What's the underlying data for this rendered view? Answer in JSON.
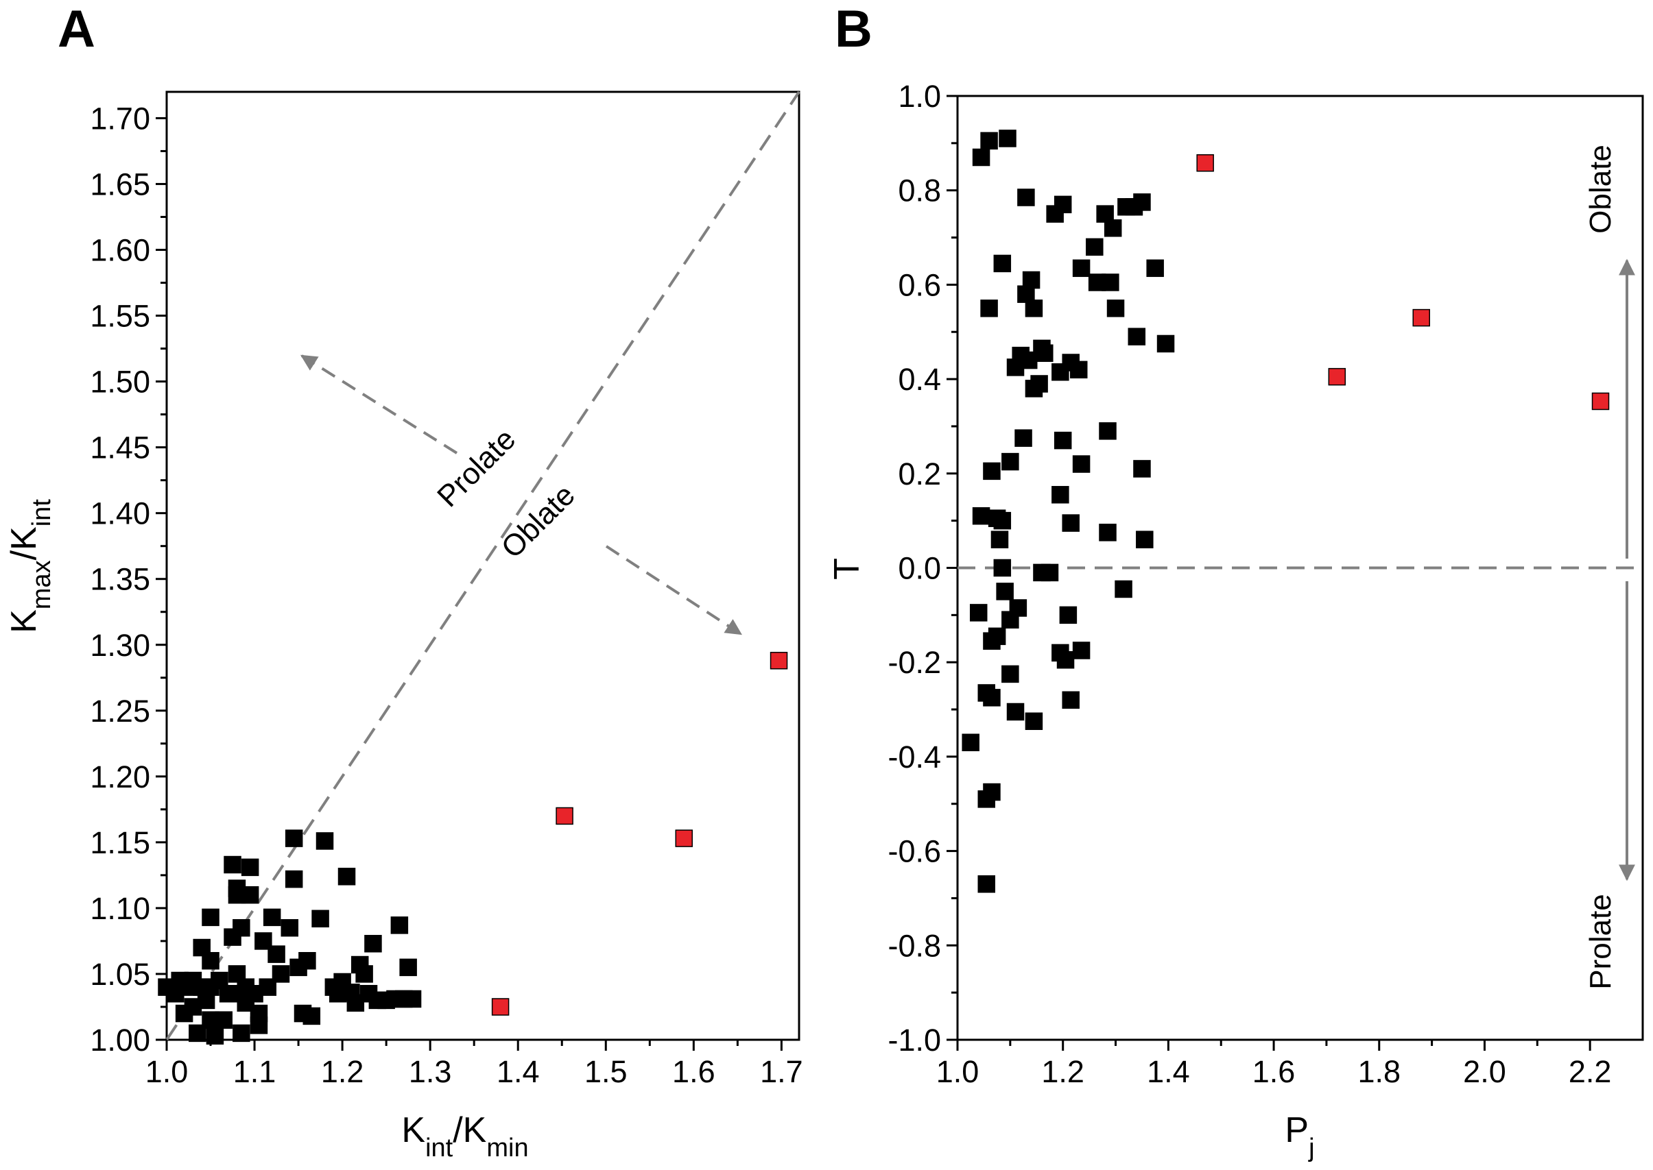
{
  "figure": {
    "panels": [
      {
        "letter": "A"
      },
      {
        "letter": "B"
      }
    ]
  },
  "chart_data": [
    {
      "type": "scatter",
      "panel": "A",
      "xlabel": {
        "base": "K",
        "sub": "int",
        "mid": "/K",
        "sub2": "min"
      },
      "ylabel": {
        "base": "K",
        "sub": "max",
        "mid": "/K",
        "sub2": "int"
      },
      "xlim": [
        1.0,
        1.72
      ],
      "ylim": [
        1.0,
        1.72
      ],
      "xticks": [
        "1.0",
        "1.1",
        "1.2",
        "1.3",
        "1.4",
        "1.5",
        "1.6",
        "1.7"
      ],
      "yticks": [
        "1.00",
        "1.05",
        "1.10",
        "1.15",
        "1.20",
        "1.25",
        "1.30",
        "1.35",
        "1.40",
        "1.45",
        "1.50",
        "1.55",
        "1.60",
        "1.65",
        "1.70"
      ],
      "reference_line": {
        "from": [
          1.0,
          1.0
        ],
        "to": [
          1.72,
          1.72
        ],
        "style": "dashed",
        "color": "#808080"
      },
      "annotations": {
        "upper": "Prolate",
        "lower": "Oblate"
      },
      "marker_colors": {
        "black": "#000000",
        "red": "#e8242a"
      },
      "series": [
        {
          "color": "black",
          "points": [
            [
              1.0,
              1.04
            ],
            [
              1.01,
              1.035
            ],
            [
              1.015,
              1.045
            ],
            [
              1.02,
              1.02
            ],
            [
              1.025,
              1.04
            ],
            [
              1.03,
              1.045
            ],
            [
              1.03,
              1.025
            ],
            [
              1.035,
              1.005
            ],
            [
              1.04,
              1.07
            ],
            [
              1.04,
              1.04
            ],
            [
              1.045,
              1.03
            ],
            [
              1.05,
              1.06
            ],
            [
              1.05,
              1.04
            ],
            [
              1.05,
              1.015
            ],
            [
              1.055,
              1.003
            ],
            [
              1.05,
              1.093
            ],
            [
              1.06,
              1.045
            ],
            [
              1.065,
              1.015
            ],
            [
              1.07,
              1.035
            ],
            [
              1.075,
              1.133
            ],
            [
              1.075,
              1.078
            ],
            [
              1.08,
              1.115
            ],
            [
              1.08,
              1.11
            ],
            [
              1.08,
              1.05
            ],
            [
              1.08,
              1.035
            ],
            [
              1.085,
              1.005
            ],
            [
              1.085,
              1.085
            ],
            [
              1.09,
              1.04
            ],
            [
              1.09,
              1.028
            ],
            [
              1.095,
              1.131
            ],
            [
              1.095,
              1.11
            ],
            [
              1.1,
              1.035
            ],
            [
              1.105,
              1.02
            ],
            [
              1.105,
              1.011
            ],
            [
              1.11,
              1.075
            ],
            [
              1.115,
              1.04
            ],
            [
              1.12,
              1.093
            ],
            [
              1.125,
              1.065
            ],
            [
              1.13,
              1.05
            ],
            [
              1.14,
              1.085
            ],
            [
              1.145,
              1.153
            ],
            [
              1.145,
              1.122
            ],
            [
              1.15,
              1.055
            ],
            [
              1.155,
              1.02
            ],
            [
              1.16,
              1.06
            ],
            [
              1.165,
              1.018
            ],
            [
              1.175,
              1.092
            ],
            [
              1.18,
              1.151
            ],
            [
              1.19,
              1.04
            ],
            [
              1.195,
              1.035
            ],
            [
              1.2,
              1.044
            ],
            [
              1.205,
              1.124
            ],
            [
              1.21,
              1.036
            ],
            [
              1.215,
              1.028
            ],
            [
              1.22,
              1.057
            ],
            [
              1.225,
              1.05
            ],
            [
              1.23,
              1.035
            ],
            [
              1.235,
              1.073
            ],
            [
              1.24,
              1.03
            ],
            [
              1.25,
              1.03
            ],
            [
              1.26,
              1.031
            ],
            [
              1.265,
              1.087
            ],
            [
              1.27,
              1.031
            ],
            [
              1.275,
              1.055
            ],
            [
              1.28,
              1.031
            ]
          ]
        },
        {
          "color": "red",
          "points": [
            [
              1.38,
              1.025
            ],
            [
              1.453,
              1.17
            ],
            [
              1.589,
              1.153
            ],
            [
              1.697,
              1.288
            ]
          ]
        }
      ]
    },
    {
      "type": "scatter",
      "panel": "B",
      "xlabel": {
        "base": "P",
        "sub": "j"
      },
      "ylabel": {
        "base": "T"
      },
      "xlim": [
        1.0,
        2.3
      ],
      "ylim": [
        -1.0,
        1.0
      ],
      "xticks": [
        "1.0",
        "1.2",
        "1.4",
        "1.6",
        "1.8",
        "2.0",
        "2.2"
      ],
      "yticks": [
        "-1.0",
        "-0.8",
        "-0.6",
        "-0.4",
        "-0.2",
        "0.0",
        "0.2",
        "0.4",
        "0.6",
        "0.8",
        "1.0"
      ],
      "reference_line": {
        "y": 0.0,
        "style": "dashed",
        "color": "#808080"
      },
      "annotations": {
        "upper": "Oblate",
        "lower": "Prolate"
      },
      "marker_colors": {
        "black": "#000000",
        "red": "#e8242a"
      },
      "series": [
        {
          "color": "black",
          "points": [
            [
              1.045,
              0.87
            ],
            [
              1.06,
              0.905
            ],
            [
              1.095,
              0.91
            ],
            [
              1.13,
              0.785
            ],
            [
              1.185,
              0.75
            ],
            [
              1.2,
              0.77
            ],
            [
              1.28,
              0.75
            ],
            [
              1.32,
              0.765
            ],
            [
              1.335,
              0.765
            ],
            [
              1.35,
              0.775
            ],
            [
              1.26,
              0.68
            ],
            [
              1.295,
              0.72
            ],
            [
              1.085,
              0.645
            ],
            [
              1.14,
              0.61
            ],
            [
              1.13,
              0.58
            ],
            [
              1.06,
              0.55
            ],
            [
              1.145,
              0.55
            ],
            [
              1.235,
              0.635
            ],
            [
              1.265,
              0.605
            ],
            [
              1.29,
              0.605
            ],
            [
              1.375,
              0.635
            ],
            [
              1.3,
              0.55
            ],
            [
              1.34,
              0.49
            ],
            [
              1.395,
              0.475
            ],
            [
              1.16,
              0.465
            ],
            [
              1.12,
              0.45
            ],
            [
              1.135,
              0.44
            ],
            [
              1.11,
              0.425
            ],
            [
              1.165,
              0.455
            ],
            [
              1.215,
              0.435
            ],
            [
              1.195,
              0.415
            ],
            [
              1.23,
              0.42
            ],
            [
              1.145,
              0.38
            ],
            [
              1.155,
              0.39
            ],
            [
              1.125,
              0.275
            ],
            [
              1.2,
              0.27
            ],
            [
              1.285,
              0.29
            ],
            [
              1.1,
              0.225
            ],
            [
              1.065,
              0.205
            ],
            [
              1.235,
              0.22
            ],
            [
              1.35,
              0.21
            ],
            [
              1.195,
              0.155
            ],
            [
              1.045,
              0.11
            ],
            [
              1.075,
              0.105
            ],
            [
              1.085,
              0.1
            ],
            [
              1.215,
              0.095
            ],
            [
              1.285,
              0.075
            ],
            [
              1.08,
              0.06
            ],
            [
              1.355,
              0.06
            ],
            [
              1.085,
              0.0
            ],
            [
              1.16,
              -0.01
            ],
            [
              1.175,
              -0.01
            ],
            [
              1.09,
              -0.05
            ],
            [
              1.315,
              -0.045
            ],
            [
              1.04,
              -0.095
            ],
            [
              1.115,
              -0.085
            ],
            [
              1.1,
              -0.11
            ],
            [
              1.21,
              -0.1
            ],
            [
              1.075,
              -0.145
            ],
            [
              1.065,
              -0.155
            ],
            [
              1.195,
              -0.18
            ],
            [
              1.235,
              -0.175
            ],
            [
              1.205,
              -0.195
            ],
            [
              1.1,
              -0.225
            ],
            [
              1.055,
              -0.265
            ],
            [
              1.065,
              -0.275
            ],
            [
              1.215,
              -0.28
            ],
            [
              1.11,
              -0.305
            ],
            [
              1.145,
              -0.325
            ],
            [
              1.025,
              -0.37
            ],
            [
              1.065,
              -0.475
            ],
            [
              1.055,
              -0.49
            ],
            [
              1.055,
              -0.67
            ]
          ]
        },
        {
          "color": "red",
          "points": [
            [
              1.47,
              0.858
            ],
            [
              1.72,
              0.405
            ],
            [
              1.88,
              0.53
            ],
            [
              2.22,
              0.353
            ]
          ]
        }
      ]
    }
  ]
}
